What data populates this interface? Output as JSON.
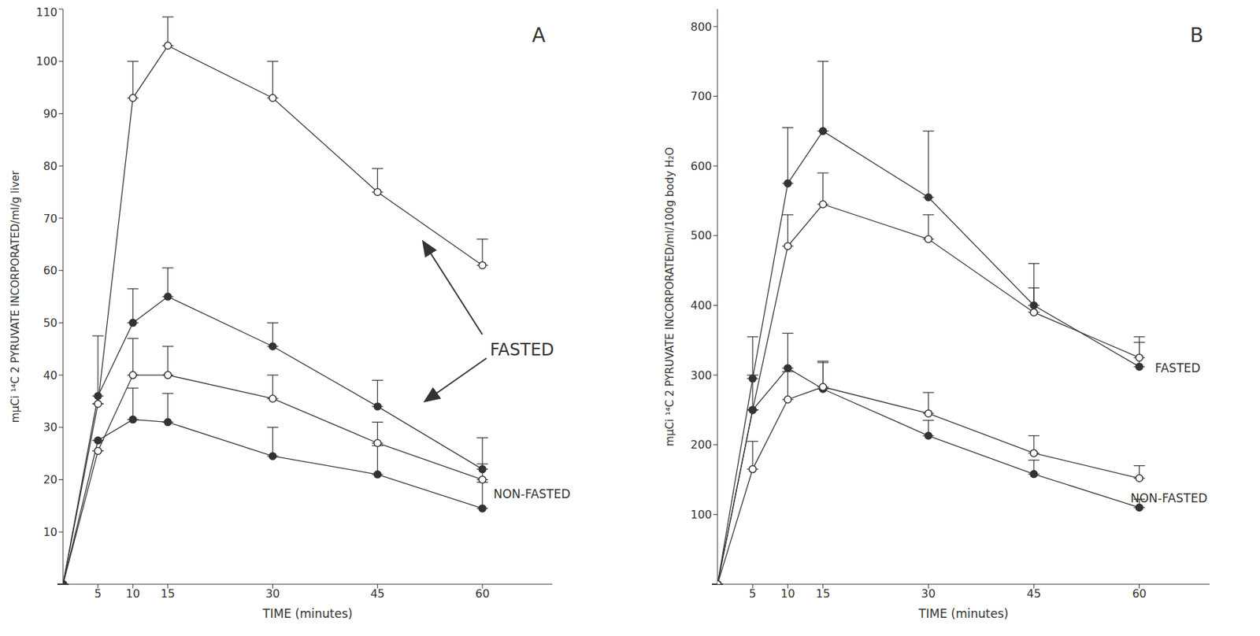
{
  "chart_data": [
    {
      "type": "line",
      "title": "A",
      "x_label": "TIME (minutes)",
      "y_label": "mμCi ¹⁴C 2 PYRUVATE INCORPORATED/ml/g liver",
      "x": [
        0,
        5,
        10,
        15,
        30,
        45,
        60
      ],
      "xlim": [
        0,
        70
      ],
      "xticks": [
        5,
        10,
        15,
        30,
        45,
        60
      ],
      "ylim": [
        0,
        110
      ],
      "yticks": [
        10,
        20,
        30,
        40,
        50,
        60,
        70,
        80,
        90,
        100,
        110
      ],
      "grid": false,
      "annotations": [
        "FASTED",
        "NON-FASTED"
      ],
      "series": [
        {
          "color": "#333333",
          "marker": "open",
          "values": [
            0,
            34.5,
            93,
            103,
            93,
            75,
            61
          ],
          "errors": [
            null,
            null,
            7,
            5.5,
            7,
            4.5,
            5
          ]
        },
        {
          "color": "#333333",
          "marker": "filled",
          "values": [
            0,
            36,
            50,
            55,
            45.5,
            34,
            22
          ],
          "errors": [
            null,
            11.5,
            6.5,
            5.5,
            4.5,
            5,
            6
          ]
        },
        {
          "color": "#333333",
          "marker": "open",
          "values": [
            0,
            25.5,
            40,
            40,
            35.5,
            27,
            20
          ],
          "errors": [
            null,
            null,
            7,
            5.5,
            4.5,
            4,
            3
          ]
        },
        {
          "color": "#333333",
          "marker": "filled",
          "values": [
            0,
            27.5,
            31.5,
            31,
            24.5,
            21,
            14.5
          ],
          "errors": [
            null,
            null,
            6,
            5.5,
            5.5,
            5.5,
            5
          ]
        }
      ]
    },
    {
      "type": "line",
      "title": "B",
      "x_label": "TIME (minutes)",
      "y_label": "mμCi ¹⁴C 2 PYRUVATE INCORPORATED/ml/100g body H₂O",
      "x": [
        0,
        5,
        10,
        15,
        30,
        45,
        60
      ],
      "xlim": [
        0,
        70
      ],
      "xticks": [
        5,
        10,
        15,
        30,
        45,
        60
      ],
      "ylim": [
        0,
        825
      ],
      "yticks": [
        100,
        200,
        300,
        400,
        500,
        600,
        700,
        800
      ],
      "grid": false,
      "annotations": [
        "FASTED",
        "NON-FASTED"
      ],
      "series": [
        {
          "color": "#333333",
          "marker": "filled",
          "values": [
            0,
            295,
            575,
            650,
            555,
            400,
            312
          ],
          "errors": [
            null,
            60,
            80,
            100,
            95,
            60,
            35
          ]
        },
        {
          "color": "#333333",
          "marker": "open",
          "values": [
            0,
            250,
            485,
            545,
            495,
            390,
            325
          ],
          "errors": [
            null,
            null,
            45,
            45,
            35,
            35,
            30
          ]
        },
        {
          "color": "#333333",
          "marker": "filled",
          "values": [
            0,
            250,
            310,
            280,
            213,
            158,
            110
          ],
          "errors": [
            null,
            50,
            50,
            40,
            22,
            20,
            12
          ]
        },
        {
          "color": "#333333",
          "marker": "open",
          "values": [
            0,
            165,
            265,
            283,
            245,
            188,
            152
          ],
          "errors": [
            null,
            40,
            40,
            35,
            30,
            25,
            18
          ]
        }
      ]
    }
  ]
}
